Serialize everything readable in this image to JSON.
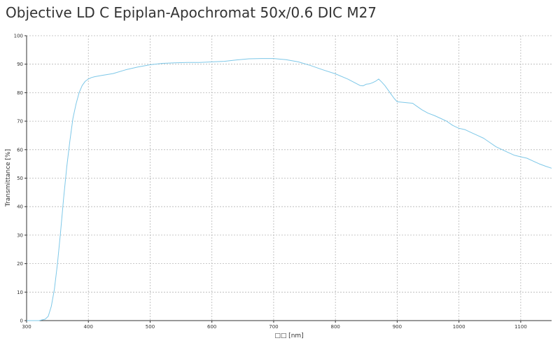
{
  "chart_data": {
    "type": "line",
    "title": "Objective LD C Epiplan-Apochromat 50x/0.6 DIC M27",
    "xlabel": "□□ [nm]",
    "ylabel": "Transmittance [%]",
    "xlim": [
      300,
      1150
    ],
    "ylim": [
      0,
      100
    ],
    "xticks": [
      300,
      400,
      500,
      600,
      700,
      800,
      900,
      1000,
      1100
    ],
    "yticks": [
      0,
      10,
      20,
      30,
      40,
      50,
      60,
      70,
      80,
      90,
      100
    ],
    "grid": true,
    "color": "#7ec8e8",
    "series": [
      {
        "x": [
          300,
          320,
          330,
          335,
          340,
          345,
          350,
          355,
          360,
          365,
          370,
          375,
          380,
          385,
          390,
          395,
          400,
          405,
          410,
          420,
          440,
          460,
          480,
          500,
          520,
          540,
          560,
          580,
          600,
          620,
          640,
          660,
          680,
          700,
          720,
          740,
          760,
          780,
          800,
          820,
          840,
          845,
          850,
          855,
          860,
          865,
          870,
          875,
          880,
          885,
          890,
          895,
          900,
          910,
          920,
          925,
          930,
          940,
          950,
          960,
          970,
          980,
          990,
          1000,
          1010,
          1020,
          1030,
          1040,
          1050,
          1060,
          1070,
          1080,
          1090,
          1100,
          1110,
          1120,
          1130,
          1140,
          1150
        ],
        "y": [
          0,
          0,
          0.5,
          1.5,
          5,
          11,
          20,
          31,
          43,
          54,
          63,
          71,
          76,
          80,
          82.5,
          84,
          84.8,
          85.3,
          85.6,
          86,
          86.7,
          88,
          89,
          89.8,
          90.3,
          90.5,
          90.6,
          90.6,
          90.8,
          91,
          91.5,
          91.9,
          92,
          92,
          91.6,
          90.8,
          89.5,
          88,
          86.6,
          84.8,
          82.5,
          82.4,
          83,
          83.1,
          83.5,
          84,
          84.8,
          83.7,
          82.5,
          81,
          79.5,
          78,
          76.8,
          76.6,
          76.4,
          76.3,
          75.5,
          74,
          72.8,
          72,
          71,
          70,
          68.5,
          67.5,
          67,
          66,
          65,
          64,
          62.5,
          61,
          60,
          59,
          58,
          57.5,
          57,
          56,
          55,
          54.2,
          53.5
        ]
      }
    ]
  }
}
